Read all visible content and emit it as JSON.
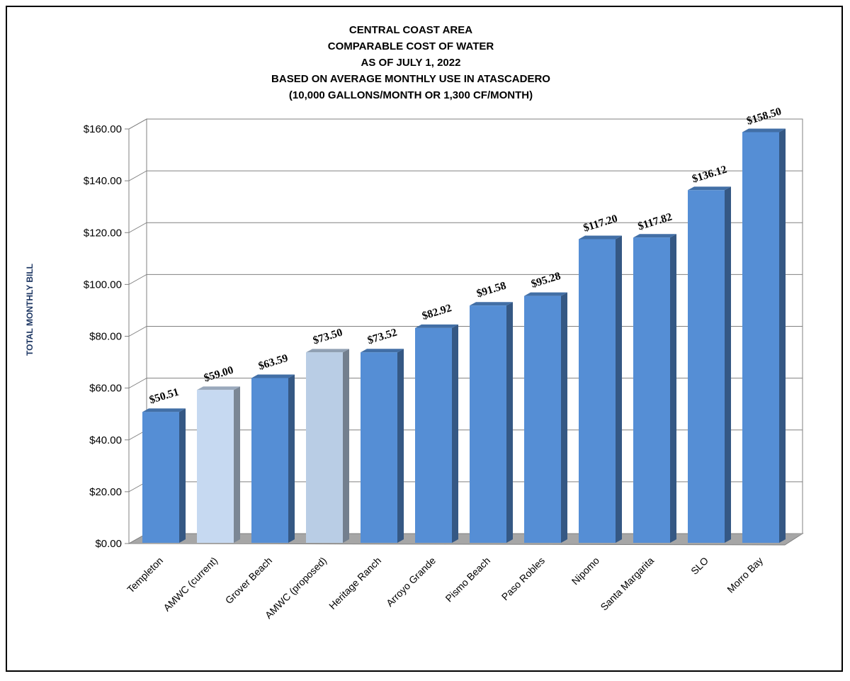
{
  "chart_data": {
    "type": "bar",
    "title_lines": [
      "CENTRAL COAST AREA",
      "COMPARABLE COST OF WATER",
      "AS OF JULY 1, 2022",
      "BASED ON AVERAGE MONTHLY USE IN ATASCADERO",
      "(10,000 GALLONS/MONTH OR 1,300 CF/MONTH)"
    ],
    "ylabel": "TOTAL MONTHLY BILL",
    "xlabel": "",
    "ylim": [
      0,
      160
    ],
    "yticks": [
      "$0.00",
      "$20.00",
      "$40.00",
      "$60.00",
      "$80.00",
      "$100.00",
      "$120.00",
      "$140.00",
      "$160.00"
    ],
    "grid": true,
    "style": "3d-column",
    "categories": [
      "Templeton",
      "AMWC (current)",
      "Grover Beach",
      "AMWC (proposed)",
      "Heritage Ranch",
      "Arroyo Grande",
      "Pismo Beach",
      "Paso Robles",
      "Nipomo",
      "Santa Margarita",
      "SLO",
      "Morro Bay"
    ],
    "values": [
      50.51,
      59.0,
      63.59,
      73.5,
      73.52,
      82.92,
      91.58,
      95.28,
      117.2,
      117.82,
      136.12,
      158.5
    ],
    "data_labels": [
      "$50.51",
      "$59.00",
      "$63.59",
      "$73.50",
      "$73.52",
      "$82.92",
      "$91.58",
      "$95.28",
      "$117.20",
      "$117.82",
      "$136.12",
      "$158.50"
    ],
    "bar_colors": [
      "#558ed5",
      "#c6d9f1",
      "#558ed5",
      "#b9cde5",
      "#558ed5",
      "#558ed5",
      "#558ed5",
      "#558ed5",
      "#558ed5",
      "#558ed5",
      "#558ed5",
      "#558ed5"
    ],
    "colors": {
      "bar": "#558ed5",
      "highlight": "#c6d9f1",
      "floor": "#a6a6a6",
      "grid": "#808080",
      "ylabel": "#1f3864"
    }
  }
}
